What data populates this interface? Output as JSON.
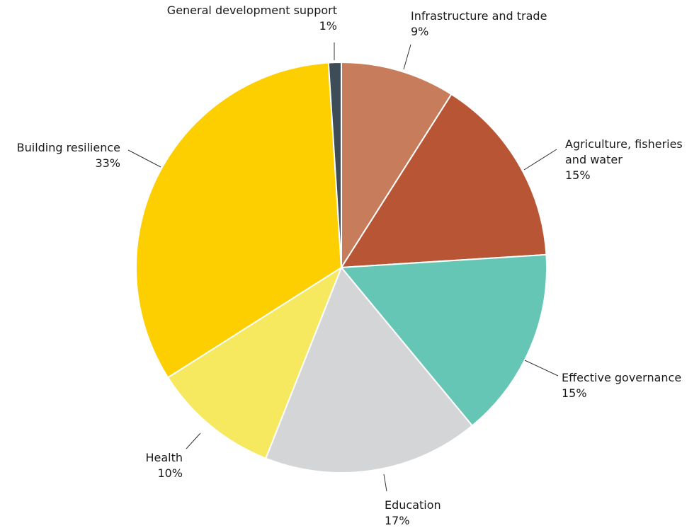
{
  "chart_data": {
    "type": "pie",
    "slices": [
      {
        "label": [
          "Infrastructure and trade"
        ],
        "pct_label": "9%",
        "value": 9,
        "color": "#C77D5B"
      },
      {
        "label": [
          "Agriculture, fisheries",
          "and water"
        ],
        "pct_label": "15%",
        "value": 15,
        "color": "#B85535"
      },
      {
        "label": [
          "Effective governance"
        ],
        "pct_label": "15%",
        "value": 15,
        "color": "#66C6B5"
      },
      {
        "label": [
          "Education"
        ],
        "pct_label": "17%",
        "value": 17,
        "color": "#D4D5D6"
      },
      {
        "label": [
          "Health"
        ],
        "pct_label": "10%",
        "value": 10,
        "color": "#F6E960"
      },
      {
        "label": [
          "Building resilience"
        ],
        "pct_label": "33%",
        "value": 33,
        "color": "#FDCF00"
      },
      {
        "label": [
          "General development support"
        ],
        "pct_label": "1%",
        "value": 1,
        "color": "#3E4C57"
      }
    ]
  }
}
